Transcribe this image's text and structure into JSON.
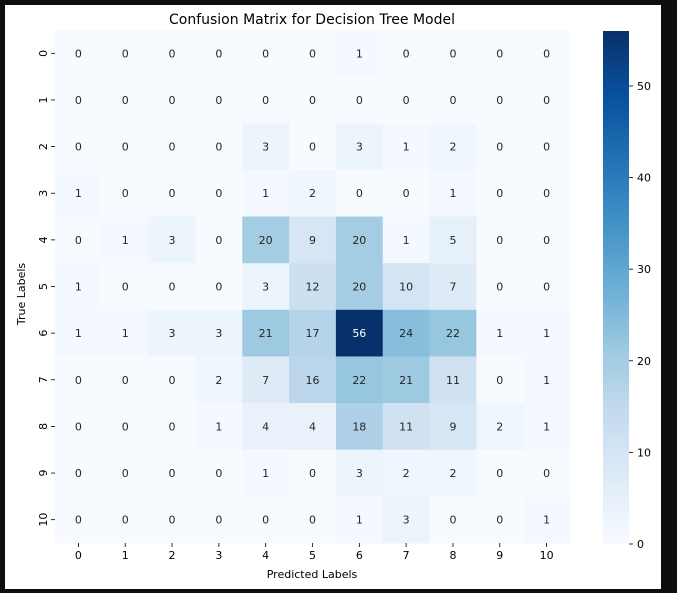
{
  "chart_data": {
    "type": "heatmap",
    "title": "Confusion Matrix for Decision Tree Model",
    "xlabel": "Predicted Labels",
    "ylabel": "True Labels",
    "x_categories": [
      "0",
      "1",
      "2",
      "3",
      "4",
      "5",
      "6",
      "7",
      "8",
      "9",
      "10"
    ],
    "y_categories": [
      "0",
      "1",
      "2",
      "3",
      "4",
      "5",
      "6",
      "7",
      "8",
      "9",
      "10"
    ],
    "values": [
      [
        0,
        0,
        0,
        0,
        0,
        0,
        1,
        0,
        0,
        0,
        0
      ],
      [
        0,
        0,
        0,
        0,
        0,
        0,
        0,
        0,
        0,
        0,
        0
      ],
      [
        0,
        0,
        0,
        0,
        3,
        0,
        3,
        1,
        2,
        0,
        0
      ],
      [
        1,
        0,
        0,
        0,
        1,
        2,
        0,
        0,
        1,
        0,
        0
      ],
      [
        0,
        1,
        3,
        0,
        20,
        9,
        20,
        1,
        5,
        0,
        0
      ],
      [
        1,
        0,
        0,
        0,
        3,
        12,
        20,
        10,
        7,
        0,
        0
      ],
      [
        1,
        1,
        3,
        3,
        21,
        17,
        56,
        24,
        22,
        1,
        1
      ],
      [
        0,
        0,
        0,
        2,
        7,
        16,
        22,
        21,
        11,
        0,
        1
      ],
      [
        0,
        0,
        0,
        1,
        4,
        4,
        18,
        11,
        9,
        2,
        1
      ],
      [
        0,
        0,
        0,
        0,
        1,
        0,
        3,
        2,
        2,
        0,
        0
      ],
      [
        0,
        0,
        0,
        0,
        0,
        0,
        1,
        3,
        0,
        0,
        1
      ]
    ],
    "colormap": "Blues",
    "color_range": [
      0,
      56
    ],
    "colorbar_ticks": [
      0,
      10,
      20,
      30,
      40,
      50
    ],
    "grid": false
  }
}
